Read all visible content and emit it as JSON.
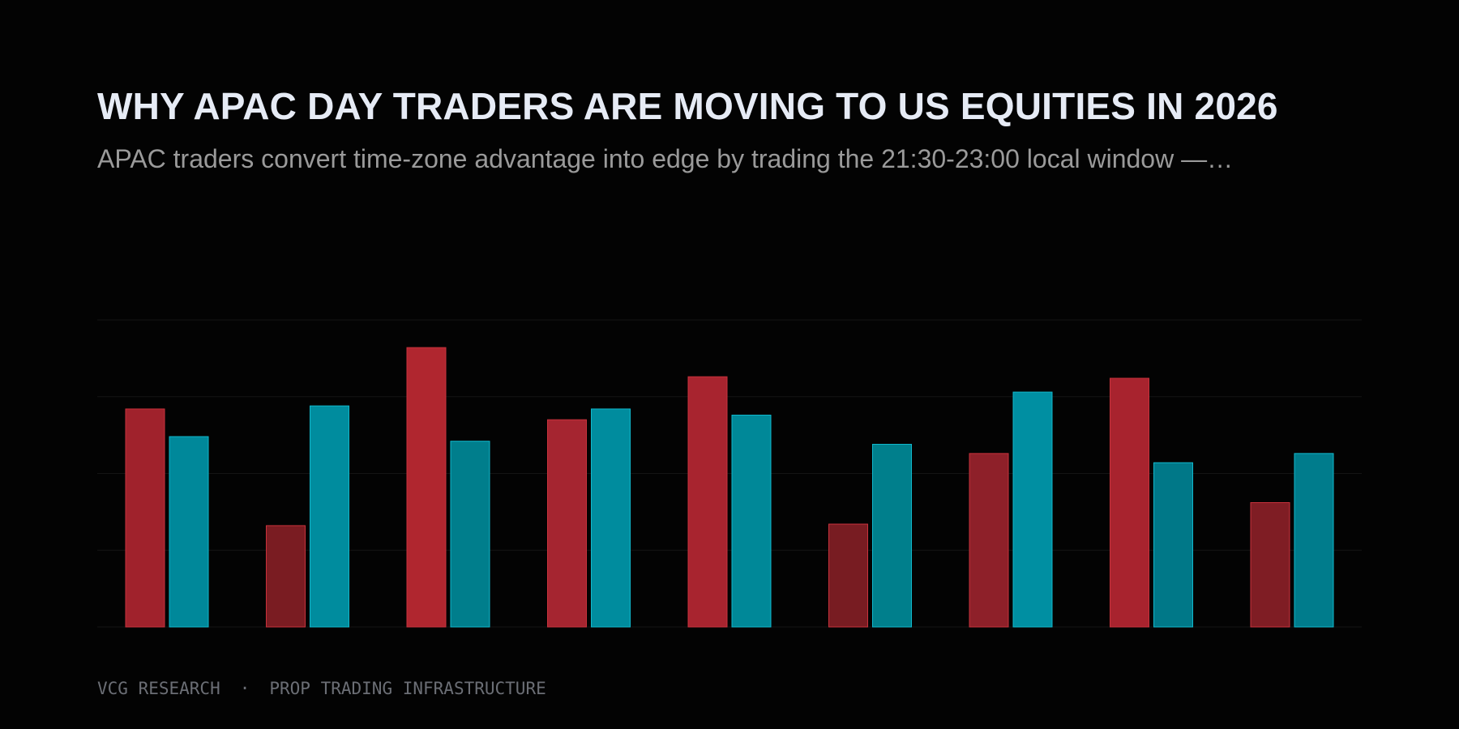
{
  "header": {
    "title": "WHY APAC DAY TRADERS ARE MOVING TO US EQUITIES IN 2026",
    "subtitle": "APAC traders convert time-zone advantage into edge by trading the 21:30-23:00 local window —…"
  },
  "footer": {
    "brand": "VCG RESEARCH",
    "separator": "·",
    "tagline": "PROP TRADING INFRASTRUCTURE"
  },
  "colors": {
    "background": "#030303",
    "series_a": "#a52530",
    "series_b": "#008a9c",
    "gridline": "#141414"
  },
  "chart_data": {
    "type": "bar",
    "title": "",
    "xlabel": "",
    "ylabel": "",
    "ylim": [
      0,
      100
    ],
    "grid": true,
    "categories": [
      "",
      "",
      "",
      "",
      "",
      "",
      "",
      "",
      ""
    ],
    "series": [
      {
        "values": [
          71,
          33,
          91,
          67.5,
          81.5,
          33.5,
          56.5,
          81,
          40.5
        ],
        "shades": [
          "#a0222c",
          "#7a1c22",
          "#b0262f",
          "#a52530",
          "#a8242f",
          "#781c22",
          "#8e2029",
          "#a8232e",
          "#7f1d24"
        ]
      },
      {
        "values": [
          62,
          72,
          60.5,
          71,
          69,
          59.5,
          76.5,
          53.5,
          56.5
        ],
        "shades": [
          "#00889a",
          "#008c9e",
          "#007e8c",
          "#008c9e",
          "#008898",
          "#007f8c",
          "#008fa2",
          "#007888",
          "#007c8c"
        ]
      }
    ]
  }
}
